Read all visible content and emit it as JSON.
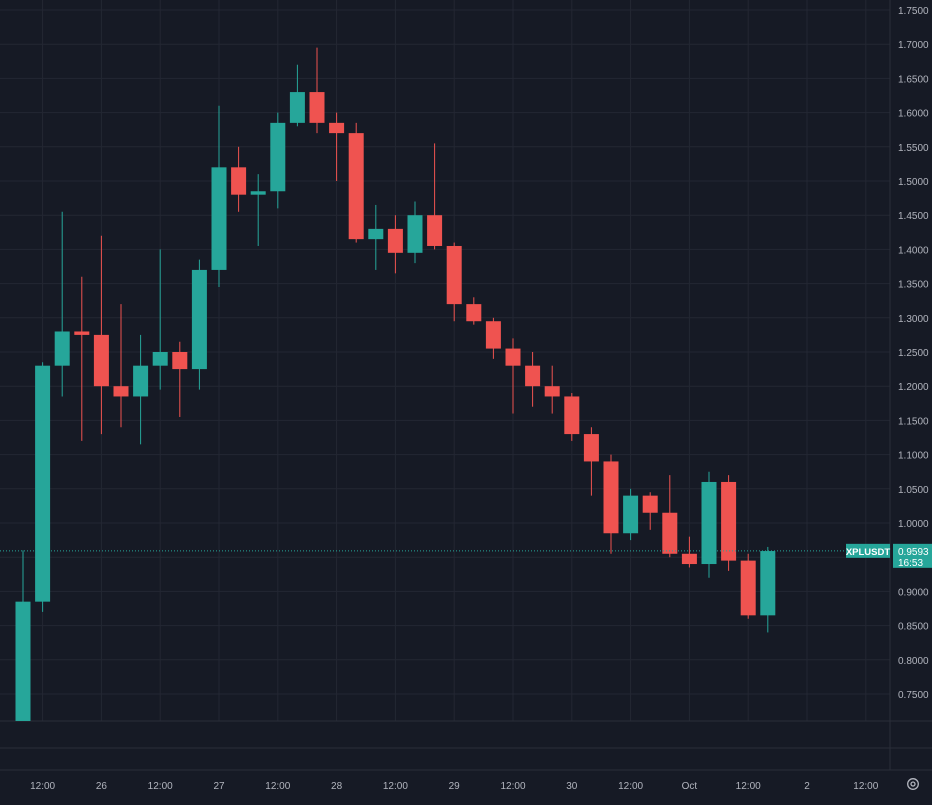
{
  "chart_data": {
    "type": "candlestick",
    "symbol": "XPLUSDT",
    "last_price": "0.9593",
    "countdown": "16:53",
    "y_ticks": [
      "1.7500",
      "1.7000",
      "1.6500",
      "1.6000",
      "1.5500",
      "1.5000",
      "1.4500",
      "1.4000",
      "1.3500",
      "1.3000",
      "1.2500",
      "1.2000",
      "1.1500",
      "1.1000",
      "1.0500",
      "1.0000",
      "0.9500",
      "0.9000",
      "0.8500",
      "0.8000",
      "0.7500"
    ],
    "x_labels": [
      {
        "label": "12:00",
        "index": 1
      },
      {
        "label": "26",
        "index": 4
      },
      {
        "label": "12:00",
        "index": 7
      },
      {
        "label": "27",
        "index": 10
      },
      {
        "label": "12:00",
        "index": 13
      },
      {
        "label": "28",
        "index": 16
      },
      {
        "label": "12:00",
        "index": 19
      },
      {
        "label": "29",
        "index": 22
      },
      {
        "label": "12:00",
        "index": 25
      },
      {
        "label": "30",
        "index": 28
      },
      {
        "label": "12:00",
        "index": 31
      },
      {
        "label": "Oct",
        "index": 34
      },
      {
        "label": "12:00",
        "index": 37
      },
      {
        "label": "2",
        "index": 40
      },
      {
        "label": "12:00",
        "index": 43
      }
    ],
    "candles": [
      {
        "o": 0.705,
        "h": 0.96,
        "l": 0.705,
        "c": 0.885
      },
      {
        "o": 0.885,
        "h": 1.235,
        "l": 0.87,
        "c": 1.23
      },
      {
        "o": 1.23,
        "h": 1.455,
        "l": 1.185,
        "c": 1.28
      },
      {
        "o": 1.28,
        "h": 1.36,
        "l": 1.12,
        "c": 1.275
      },
      {
        "o": 1.275,
        "h": 1.42,
        "l": 1.13,
        "c": 1.2
      },
      {
        "o": 1.2,
        "h": 1.32,
        "l": 1.14,
        "c": 1.185
      },
      {
        "o": 1.185,
        "h": 1.275,
        "l": 1.115,
        "c": 1.23
      },
      {
        "o": 1.23,
        "h": 1.4,
        "l": 1.195,
        "c": 1.25
      },
      {
        "o": 1.25,
        "h": 1.265,
        "l": 1.155,
        "c": 1.225
      },
      {
        "o": 1.225,
        "h": 1.385,
        "l": 1.195,
        "c": 1.37
      },
      {
        "o": 1.37,
        "h": 1.61,
        "l": 1.345,
        "c": 1.52
      },
      {
        "o": 1.52,
        "h": 1.55,
        "l": 1.455,
        "c": 1.48
      },
      {
        "o": 1.48,
        "h": 1.51,
        "l": 1.405,
        "c": 1.485
      },
      {
        "o": 1.485,
        "h": 1.6,
        "l": 1.46,
        "c": 1.585
      },
      {
        "o": 1.585,
        "h": 1.67,
        "l": 1.58,
        "c": 1.63
      },
      {
        "o": 1.63,
        "h": 1.695,
        "l": 1.57,
        "c": 1.585
      },
      {
        "o": 1.585,
        "h": 1.6,
        "l": 1.5,
        "c": 1.57
      },
      {
        "o": 1.57,
        "h": 1.585,
        "l": 1.41,
        "c": 1.415
      },
      {
        "o": 1.415,
        "h": 1.465,
        "l": 1.37,
        "c": 1.43
      },
      {
        "o": 1.43,
        "h": 1.45,
        "l": 1.365,
        "c": 1.395
      },
      {
        "o": 1.395,
        "h": 1.47,
        "l": 1.38,
        "c": 1.45
      },
      {
        "o": 1.45,
        "h": 1.555,
        "l": 1.4,
        "c": 1.405
      },
      {
        "o": 1.405,
        "h": 1.41,
        "l": 1.295,
        "c": 1.32
      },
      {
        "o": 1.32,
        "h": 1.33,
        "l": 1.29,
        "c": 1.295
      },
      {
        "o": 1.295,
        "h": 1.3,
        "l": 1.24,
        "c": 1.255
      },
      {
        "o": 1.255,
        "h": 1.27,
        "l": 1.16,
        "c": 1.23
      },
      {
        "o": 1.23,
        "h": 1.25,
        "l": 1.17,
        "c": 1.2
      },
      {
        "o": 1.2,
        "h": 1.23,
        "l": 1.16,
        "c": 1.185
      },
      {
        "o": 1.185,
        "h": 1.19,
        "l": 1.12,
        "c": 1.13
      },
      {
        "o": 1.13,
        "h": 1.14,
        "l": 1.04,
        "c": 1.09
      },
      {
        "o": 1.09,
        "h": 1.1,
        "l": 0.955,
        "c": 0.985
      },
      {
        "o": 0.985,
        "h": 1.05,
        "l": 0.975,
        "c": 1.04
      },
      {
        "o": 1.04,
        "h": 1.045,
        "l": 0.99,
        "c": 1.015
      },
      {
        "o": 1.015,
        "h": 1.07,
        "l": 0.95,
        "c": 0.955
      },
      {
        "o": 0.955,
        "h": 0.98,
        "l": 0.935,
        "c": 0.94
      },
      {
        "o": 0.94,
        "h": 1.075,
        "l": 0.92,
        "c": 1.06
      },
      {
        "o": 1.06,
        "h": 1.07,
        "l": 0.93,
        "c": 0.945
      },
      {
        "o": 0.945,
        "h": 0.955,
        "l": 0.86,
        "c": 0.865
      },
      {
        "o": 0.865,
        "h": 0.965,
        "l": 0.84,
        "c": 0.959
      }
    ],
    "grid": true,
    "colors": {
      "background": "#161a25",
      "grid": "#232733",
      "up": "#26a69a",
      "down": "#ef5350",
      "axis_text": "#b2b5be",
      "label_bg": "#26a69a",
      "label_text": "#ffffff"
    }
  },
  "icons": {
    "settings": "gear-icon"
  }
}
